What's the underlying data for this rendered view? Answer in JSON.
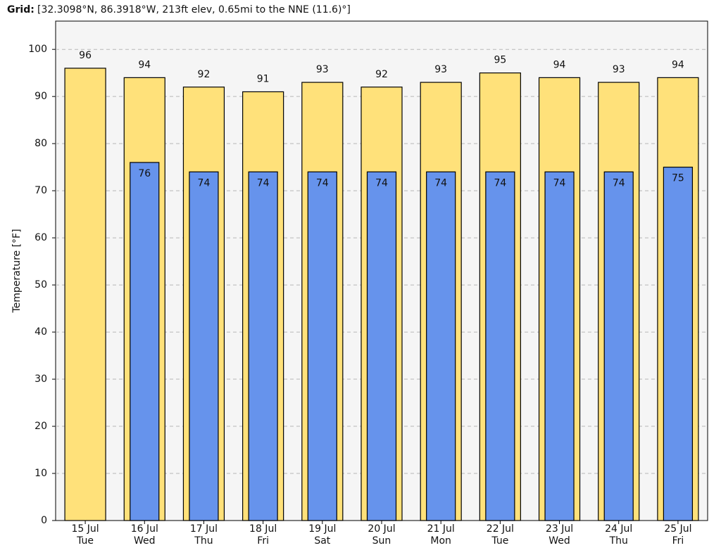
{
  "chart_data": {
    "type": "bar",
    "grid_label": "Grid:",
    "grid_info": "[32.3098°N, 86.3918°W, 213ft elev, 0.65mi to the NNE (11.6)°]",
    "ylabel": "Temperature [°F]",
    "categories": [
      [
        "15 Jul",
        "Tue"
      ],
      [
        "16 Jul",
        "Wed"
      ],
      [
        "17 Jul",
        "Thu"
      ],
      [
        "18 Jul",
        "Fri"
      ],
      [
        "19 Jul",
        "Sat"
      ],
      [
        "20 Jul",
        "Sun"
      ],
      [
        "21 Jul",
        "Mon"
      ],
      [
        "22 Jul",
        "Tue"
      ],
      [
        "23 Jul",
        "Wed"
      ],
      [
        "24 Jul",
        "Thu"
      ],
      [
        "25 Jul",
        "Fri"
      ]
    ],
    "series": [
      {
        "color": "#ffe17a",
        "values": [
          96,
          94,
          92,
          91,
          93,
          92,
          93,
          95,
          94,
          93,
          94
        ]
      },
      {
        "color": "#6693ec",
        "values": [
          null,
          76,
          74,
          74,
          74,
          74,
          74,
          74,
          74,
          74,
          75
        ]
      }
    ],
    "ylim": [
      0,
      106
    ],
    "yticks": [
      0,
      10,
      20,
      30,
      40,
      50,
      60,
      70,
      80,
      90,
      100
    ],
    "grid": true
  }
}
